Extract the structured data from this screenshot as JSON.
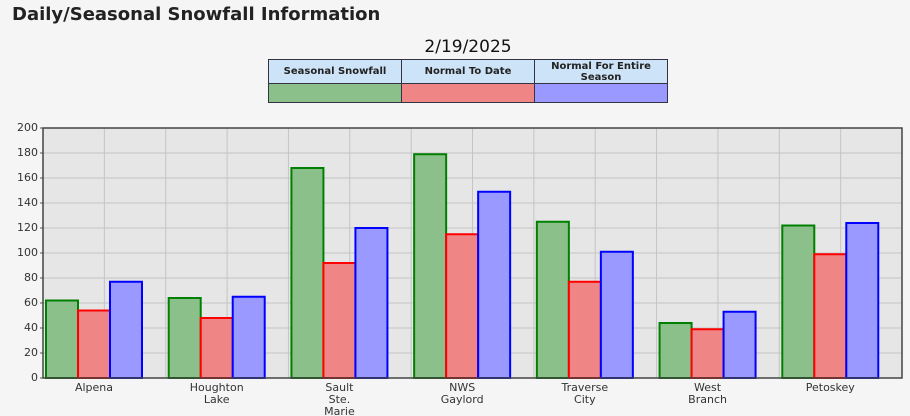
{
  "page_title": "Daily/Seasonal Snowfall Information",
  "chart_data": {
    "type": "bar",
    "title": "2/19/2025",
    "categories": [
      "Alpena",
      "Houghton Lake",
      "Sault Ste. Marie",
      "NWS Gaylord",
      "Traverse City",
      "West Branch",
      "Petoskey"
    ],
    "series": [
      {
        "name": "Seasonal Snowfall",
        "color": "#8cc08a",
        "edge_color": "#008000",
        "values": [
          62,
          64,
          168,
          179,
          125,
          44,
          122
        ]
      },
      {
        "name": "Normal To Date",
        "color": "#f08585",
        "edge_color": "#ff0000",
        "values": [
          54,
          48,
          92,
          115,
          77,
          39,
          99
        ]
      },
      {
        "name": "Normal For Entire Season",
        "color": "#9999ff",
        "edge_color": "#0000ff",
        "values": [
          77,
          65,
          120,
          149,
          101,
          53,
          124
        ]
      }
    ],
    "ylim": [
      0,
      200
    ],
    "yticks": [
      0,
      20,
      40,
      60,
      80,
      100,
      120,
      140,
      160,
      180,
      200
    ],
    "grid": true
  }
}
